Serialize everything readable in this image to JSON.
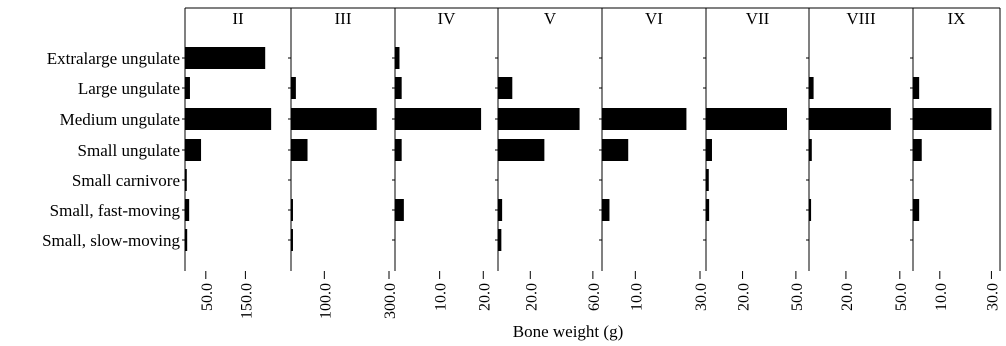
{
  "chart_data": {
    "type": "bar",
    "orientation": "horizontal",
    "xlabel": "Bone weight (g)",
    "categories": [
      "Extralarge ungulate",
      "Large ungulate",
      "Medium ungulate",
      "Small ungulate",
      "Small carnivore",
      "Small, fast-moving",
      "Small, slow-moving"
    ],
    "panels": [
      {
        "title": "II",
        "xlim": [
          0,
          250
        ],
        "ticks": [
          {
            "value": 50,
            "label": "50.0"
          },
          {
            "value": 150,
            "label": "150.0"
          }
        ],
        "values": [
          200,
          10,
          215,
          38,
          2,
          8,
          3
        ]
      },
      {
        "title": "III",
        "xlim": [
          0,
          300
        ],
        "ticks": [
          {
            "value": 100,
            "label": "100.0"
          },
          {
            "value": 300,
            "label": "300.0"
          }
        ],
        "values": [
          0,
          12,
          262,
          48,
          0,
          3,
          3
        ]
      },
      {
        "title": "IV",
        "xlim": [
          0,
          22
        ],
        "ticks": [
          {
            "value": 10,
            "label": "10.0"
          },
          {
            "value": 20,
            "label": "20.0"
          }
        ],
        "values": [
          0.8,
          1.3,
          19.5,
          1.3,
          0,
          1.8,
          0
        ]
      },
      {
        "title": "V",
        "xlim": [
          0,
          62
        ],
        "ticks": [
          {
            "value": 20,
            "label": "20.0"
          },
          {
            "value": 60,
            "label": "60.0"
          }
        ],
        "values": [
          0,
          8.5,
          51.5,
          29,
          0,
          2,
          1.5
        ]
      },
      {
        "title": "VI",
        "xlim": [
          0,
          30
        ],
        "ticks": [
          {
            "value": 10,
            "label": "10.0"
          },
          {
            "value": 30,
            "label": "30.0"
          }
        ],
        "values": [
          0,
          0,
          25.8,
          7.8,
          0,
          2,
          0
        ]
      },
      {
        "title": "VII",
        "xlim": [
          0,
          54
        ],
        "ticks": [
          {
            "value": 20,
            "label": "20.0"
          },
          {
            "value": 50,
            "label": "50.0"
          }
        ],
        "values": [
          0,
          0,
          45,
          2.8,
          1,
          1.2,
          0
        ]
      },
      {
        "title": "VIII",
        "xlim": [
          0,
          54
        ],
        "ticks": [
          {
            "value": 20,
            "label": "20.0"
          },
          {
            "value": 50,
            "label": "50.0"
          }
        ],
        "values": [
          0,
          2,
          45,
          1,
          0,
          0.6,
          0
        ]
      },
      {
        "title": "IX",
        "xlim": [
          0,
          31
        ],
        "ticks": [
          {
            "value": 10,
            "label": "10.0"
          },
          {
            "value": 30,
            "label": "30.0"
          }
        ],
        "values": [
          0,
          2,
          30,
          3,
          0,
          2,
          0
        ]
      }
    ]
  }
}
